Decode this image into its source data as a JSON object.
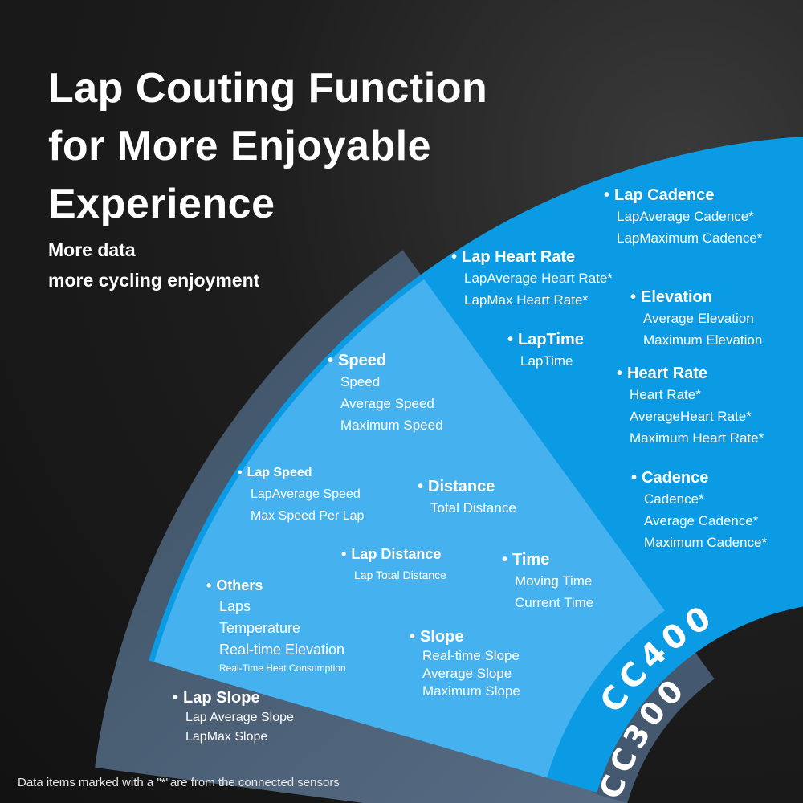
{
  "header": {
    "title_lines": [
      "Lap Couting Function",
      "for More Enjoyable",
      "Experience"
    ],
    "subtitle_lines": [
      "More data",
      "more cycling enjoyment"
    ]
  },
  "colors": {
    "background": "#161616",
    "cc300_gray": "#4d6680",
    "cc300_light": "#45b2ef",
    "cc400_blue": "#0b9be4"
  },
  "models": {
    "cc400": "CC400",
    "cc300": "CC300"
  },
  "groups": [
    {
      "heading": "Lap Cadence",
      "items": [
        "LapAverage Cadence*",
        "LapMaximum Cadence*"
      ]
    },
    {
      "heading": "Lap Heart Rate",
      "items": [
        "LapAverage Heart Rate*",
        "LapMax Heart Rate*"
      ]
    },
    {
      "heading": "Elevation",
      "items": [
        "Average Elevation",
        "Maximum Elevation"
      ]
    },
    {
      "heading": "LapTime",
      "items": [
        "LapTime"
      ]
    },
    {
      "heading": "Heart Rate",
      "items": [
        "Heart Rate*",
        "AverageHeart Rate*",
        "Maximum Heart Rate*"
      ]
    },
    {
      "heading": "Cadence",
      "items": [
        "Cadence*",
        "Average Cadence*",
        "Maximum Cadence*"
      ]
    },
    {
      "heading": "Speed",
      "items": [
        "Speed",
        "Average Speed",
        "Maximum Speed"
      ]
    },
    {
      "heading": "Lap Speed",
      "items": [
        "LapAverage Speed",
        "Max Speed Per Lap"
      ]
    },
    {
      "heading": "Distance",
      "items": [
        "Total Distance"
      ]
    },
    {
      "heading": "Lap Distance",
      "items": [
        "Lap Total Distance"
      ]
    },
    {
      "heading": "Time",
      "items": [
        "Moving Time",
        "Current Time"
      ]
    },
    {
      "heading": "Others",
      "items": [
        "Laps",
        "Temperature",
        "Real-time Elevation",
        "Real-Time Heat Consumption"
      ]
    },
    {
      "heading": "Slope",
      "items": [
        "Real-time Slope",
        "Average Slope",
        "Maximum Slope"
      ]
    },
    {
      "heading": "Lap Slope",
      "items": [
        "Lap Average Slope",
        "LapMax Slope"
      ]
    }
  ],
  "footnote": "Data items marked with a \"*\"are from the connected sensors"
}
